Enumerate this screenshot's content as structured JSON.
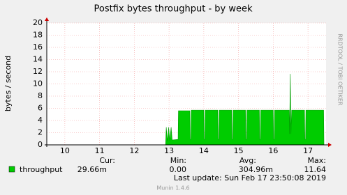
{
  "chart_data": {
    "type": "line",
    "title": "Postfix bytes throughput - by week",
    "y_label": "bytes / second",
    "side_label": "RRDTOOL / TOBI OETIKER",
    "x": [
      9.48,
      12.9,
      12.92,
      12.95,
      12.99,
      13.02,
      13.06,
      13.09,
      13.26,
      13.27,
      13.6,
      13.61,
      13.63,
      13.64,
      14.0,
      14.01,
      14.03,
      14.04,
      14.4,
      14.41,
      14.43,
      14.44,
      14.8,
      14.81,
      14.83,
      14.84,
      15.2,
      15.21,
      15.23,
      15.24,
      15.6,
      15.61,
      15.63,
      15.64,
      16.0,
      16.01,
      16.03,
      16.04,
      16.46,
      16.47,
      16.49,
      16.51,
      16.53,
      16.9,
      16.91,
      16.93,
      16.94,
      17.45,
      17.46
    ],
    "series": [
      {
        "name": "throughput",
        "color": "#00cc00",
        "values": [
          0,
          0,
          2.9,
          0.6,
          2.9,
          0.7,
          2.9,
          0.8,
          0.9,
          5.6,
          5.6,
          0.9,
          0.9,
          5.7,
          5.7,
          0.9,
          0.9,
          5.7,
          5.7,
          0.9,
          0.9,
          5.7,
          5.7,
          0.9,
          0.9,
          5.7,
          5.7,
          0.9,
          0.9,
          5.7,
          5.7,
          0.9,
          0.9,
          5.7,
          5.7,
          0.9,
          0.9,
          5.7,
          5.7,
          1.8,
          11.64,
          1.8,
          5.7,
          5.7,
          0.9,
          0.9,
          5.7,
          5.7,
          0
        ]
      }
    ],
    "xlim": [
      9.48,
      17.52
    ],
    "ylim": [
      0,
      20
    ],
    "xticks": [
      10,
      11,
      12,
      13,
      14,
      15,
      16,
      17
    ],
    "yticks": [
      0,
      2,
      4,
      6,
      8,
      10,
      12,
      14,
      16,
      18,
      20
    ],
    "grid": true,
    "legend": {
      "headers": [
        "Cur:",
        "Min:",
        "Avg:",
        "Max:"
      ],
      "values": [
        "29.66m",
        "0.00",
        "304.96m",
        "11.64"
      ]
    },
    "last_update": "Last update:  Sun Feb 17 23:50:08 2019",
    "footer": "Munin 1.4.6"
  }
}
